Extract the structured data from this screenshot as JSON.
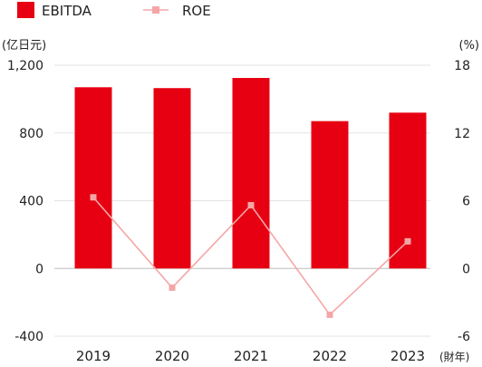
{
  "chart_data": {
    "type": "bar",
    "categories": [
      "2019",
      "2020",
      "2021",
      "2022",
      "2023"
    ],
    "x_unit_label": "(財年)",
    "left_axis": {
      "unit_label": "(亿日元)",
      "ticks": [
        "1,200",
        "800",
        "400",
        "0",
        "-400"
      ],
      "tick_values": [
        1200,
        800,
        400,
        0,
        -400
      ],
      "ylim": [
        -400,
        1200
      ]
    },
    "right_axis": {
      "unit_label": "(%)",
      "ticks": [
        "18",
        "12",
        "6",
        "0",
        "-6"
      ],
      "tick_values": [
        18,
        12,
        6,
        0,
        -6
      ],
      "ylim": [
        -6,
        18
      ]
    },
    "series": [
      {
        "name": "EBITDA",
        "type": "bar",
        "axis": "left",
        "color": "#e60012",
        "values": [
          1070,
          1065,
          1125,
          870,
          920
        ]
      },
      {
        "name": "ROE",
        "type": "line",
        "axis": "right",
        "color": "#f4a6a6",
        "values": [
          6.3,
          -1.7,
          5.6,
          -4.1,
          2.4
        ]
      }
    ],
    "grid": "horizontal",
    "legend": "top-left"
  }
}
